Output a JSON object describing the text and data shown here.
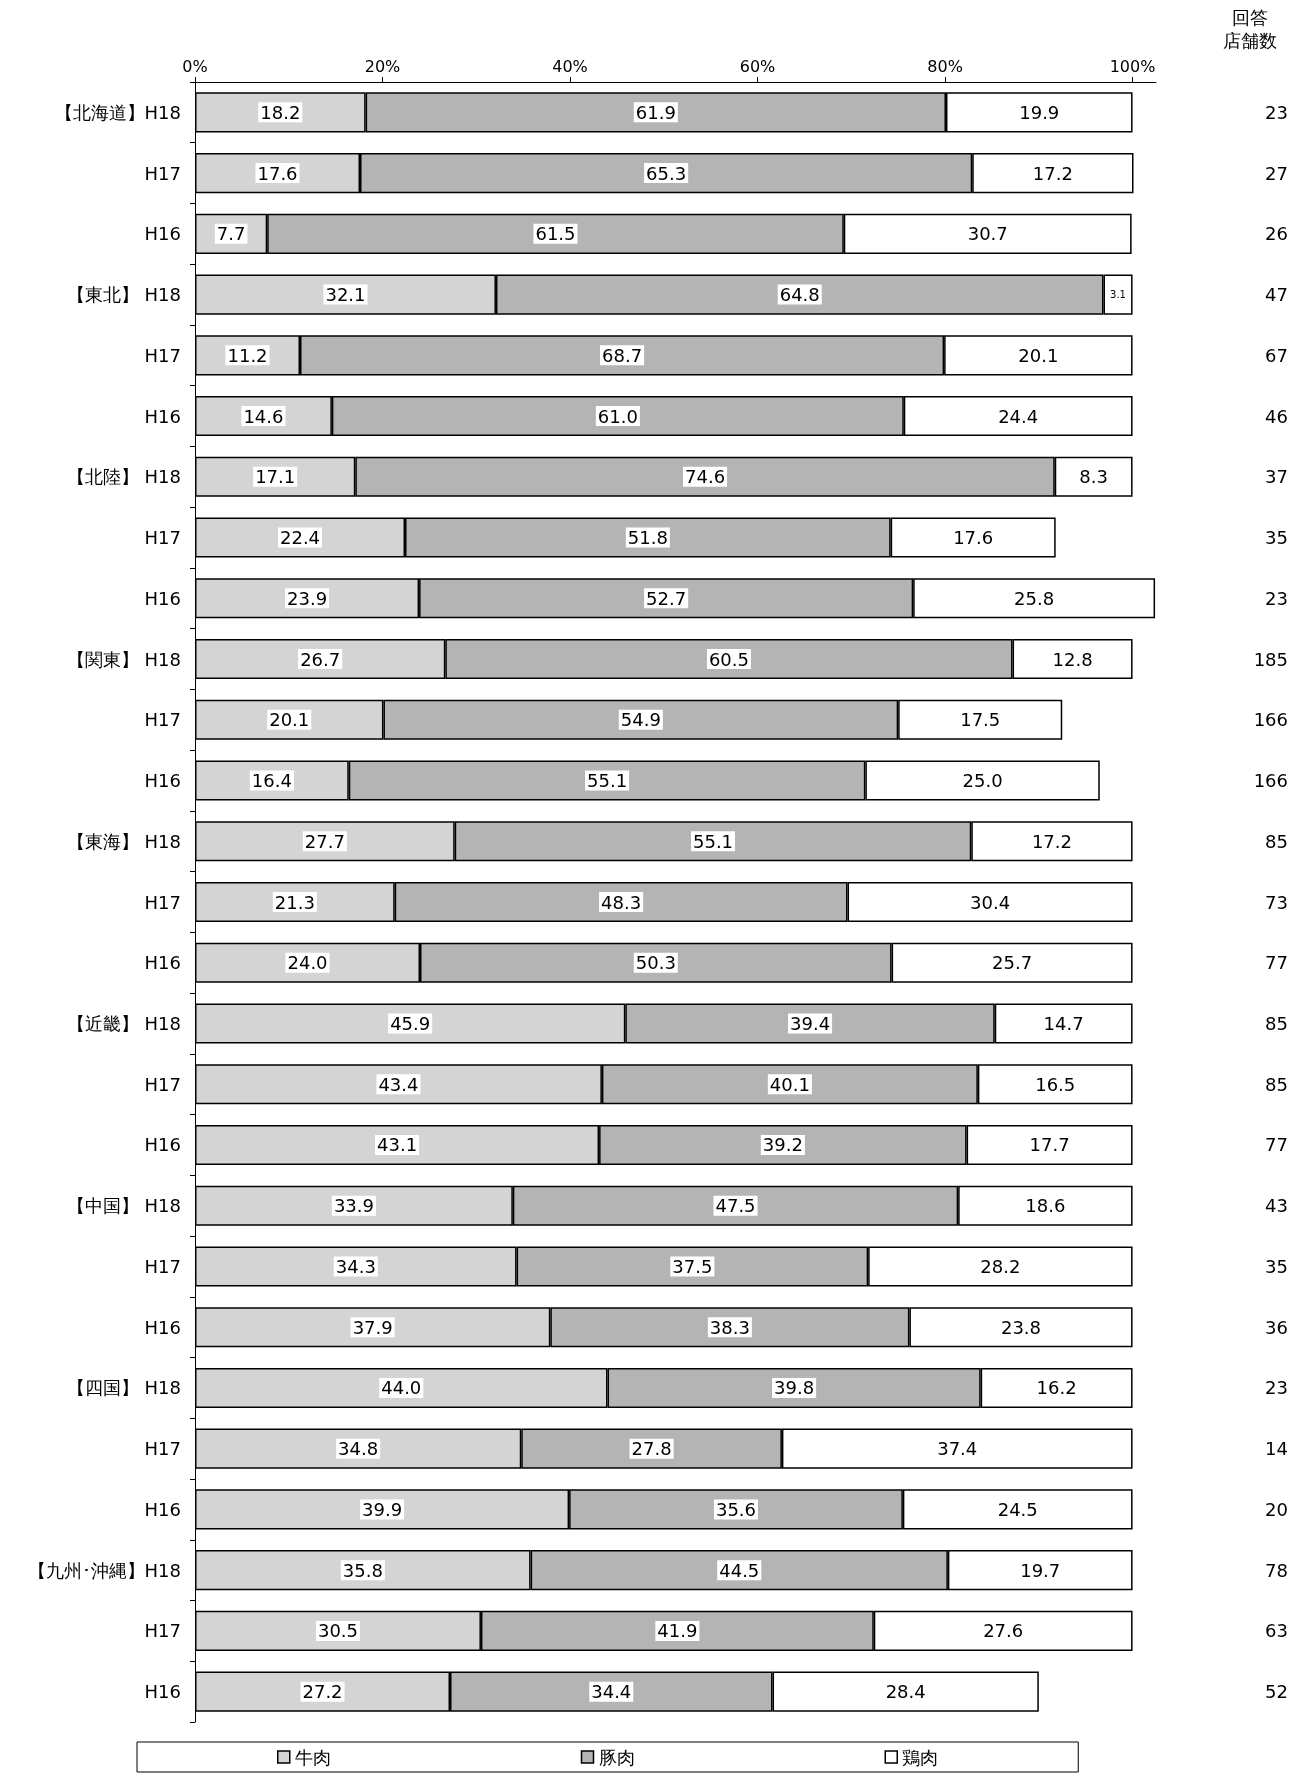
{
  "chart_data": {
    "type": "bar",
    "orientation": "horizontal",
    "stacked": true,
    "categories": [
      "【北海道】H18",
      "H17",
      "H16",
      "【東北】 H18",
      "H17",
      "H16",
      "【北陸】 H18",
      "H17",
      "H16",
      "【関東】 H18",
      "H17",
      "H16",
      "【東海】 H18",
      "H17",
      "H16",
      "【近畿】 H18",
      "H17",
      "H16",
      "【中国】 H18",
      "H17",
      "H16",
      "【四国】 H18",
      "H17",
      "H16",
      "【九州･沖縄】H18",
      "H17",
      "H16"
    ],
    "series": [
      {
        "name": "牛肉",
        "color": "#d4d4d4",
        "values": [
          18.2,
          17.6,
          7.7,
          32.1,
          11.2,
          14.6,
          17.1,
          22.4,
          23.9,
          26.7,
          20.1,
          16.4,
          27.7,
          21.3,
          24.0,
          45.9,
          43.4,
          43.1,
          33.9,
          34.3,
          37.9,
          44.0,
          34.8,
          39.9,
          35.8,
          30.5,
          27.2
        ],
        "value_labels": [
          "18.2",
          "17.6",
          "7.7",
          "32.1",
          "11.2",
          "14.6",
          "17.1",
          "22.4",
          "23.9",
          "26.7",
          "20.1",
          "16.4",
          "27.7",
          "21.3",
          "24.0",
          "45.9",
          "43.4",
          "43.1",
          "33.9",
          "34.3",
          "37.9",
          "44.0",
          "34.8",
          "39.9",
          "35.8",
          "30.5",
          "27.2"
        ]
      },
      {
        "name": "豚肉",
        "color": "#b4b4b4",
        "values": [
          61.9,
          65.3,
          61.5,
          64.8,
          68.7,
          61.0,
          74.6,
          51.8,
          52.7,
          60.5,
          54.9,
          55.1,
          55.1,
          48.3,
          50.3,
          39.4,
          40.1,
          39.2,
          47.5,
          37.5,
          38.3,
          39.8,
          27.8,
          35.6,
          44.5,
          41.9,
          34.4
        ],
        "value_labels": [
          "61.9",
          "65.3",
          "61.5",
          "64.8",
          "68.7",
          "61.0",
          "74.6",
          "51.8",
          "52.7",
          "60.5",
          "54.9",
          "55.1",
          "55.1",
          "48.3",
          "50.3",
          "39.4",
          "40.1",
          "39.2",
          "47.5",
          "37.5",
          "38.3",
          "39.8",
          "27.8",
          "35.6",
          "44.5",
          "41.9",
          "34.4"
        ]
      },
      {
        "name": "鶏肉",
        "color": "#ffffff",
        "values": [
          19.9,
          17.2,
          30.7,
          3.1,
          20.1,
          24.4,
          8.3,
          17.6,
          25.8,
          12.8,
          17.5,
          25.0,
          17.2,
          30.4,
          25.7,
          14.7,
          16.5,
          17.7,
          18.6,
          28.2,
          23.8,
          16.2,
          37.4,
          24.5,
          19.7,
          27.6,
          28.4
        ],
        "value_labels": [
          "19.9",
          "17.2",
          "30.7",
          "3.1",
          "20.1",
          "24.4",
          "8.3",
          "17.6",
          "25.8",
          "12.8",
          "17.5",
          "25.0",
          "17.2",
          "30.4",
          "25.7",
          "14.7",
          "16.5",
          "17.7",
          "18.6",
          "28.2",
          "23.8",
          "16.2",
          "37.4",
          "24.5",
          "19.7",
          "27.6",
          "28.4"
        ]
      }
    ],
    "xlim": [
      0,
      102.5
    ],
    "xticks": [
      {
        "value": 0,
        "label": "0%"
      },
      {
        "value": 20,
        "label": "20%"
      },
      {
        "value": 40,
        "label": "40%"
      },
      {
        "value": 60,
        "label": "60%"
      },
      {
        "value": 80,
        "label": "80%"
      },
      {
        "value": 100,
        "label": "100%"
      }
    ],
    "annotations": [
      "回答",
      "店舗数",
      "23",
      "27",
      "26",
      "47",
      "67",
      "46",
      "37",
      "35",
      "23",
      "185",
      "166",
      "166",
      "85",
      "73",
      "77",
      "85",
      "85",
      "77",
      "43",
      "35",
      "36",
      "23",
      "14",
      "20",
      "78",
      "63",
      "52"
    ],
    "legend": "bottom",
    "grid": false
  }
}
